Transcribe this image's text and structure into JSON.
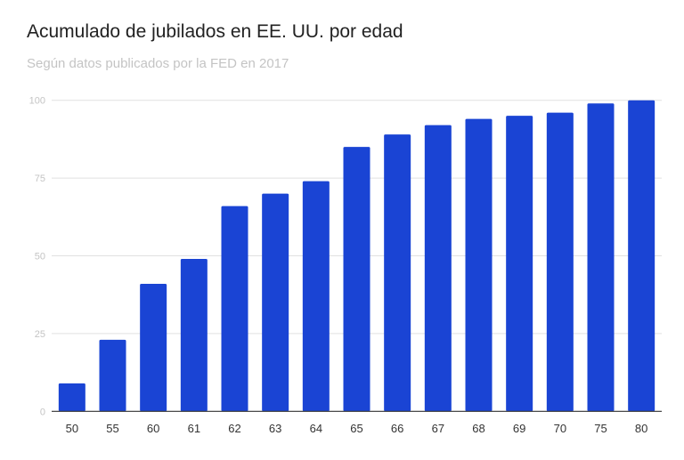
{
  "chart_data": {
    "type": "bar",
    "title": "Acumulado de jubilados en EE. UU. por edad",
    "subtitle": "Según datos publicados por la FED en 2017",
    "categories": [
      "50",
      "55",
      "60",
      "61",
      "62",
      "63",
      "64",
      "65",
      "66",
      "67",
      "68",
      "69",
      "70",
      "75",
      "80"
    ],
    "values": [
      9,
      23,
      41,
      49,
      66,
      70,
      74,
      85,
      89,
      92,
      94,
      95,
      96,
      99,
      100
    ],
    "yticks": [
      0,
      25,
      50,
      75,
      100
    ],
    "ylim": [
      0,
      100
    ],
    "xlabel": "",
    "ylabel": "",
    "grid": true,
    "legend": "none",
    "bar_color": "#1a44d4"
  }
}
